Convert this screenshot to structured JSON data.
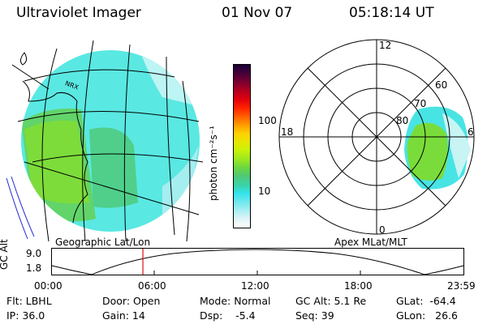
{
  "header": {
    "title": "Ultraviolet Imager",
    "date": "01 Nov 07",
    "time": "05:18:14 UT"
  },
  "geo_panel": {
    "caption": "Geographic Lat/Lon",
    "city_label": "NRX"
  },
  "colorbar": {
    "unit_label": "photon cm⁻²s⁻¹",
    "ticks": [
      {
        "label": "100",
        "level": 0.62
      },
      {
        "label": "10",
        "level": 0.22
      }
    ],
    "colors": [
      "#ffffff",
      "#e0f4f6",
      "#a9eef2",
      "#6ee8ee",
      "#34e3ea",
      "#3cd2a8",
      "#4fc877",
      "#6cd640",
      "#9ce820",
      "#c7f20a",
      "#e8e600",
      "#ffd000",
      "#ff9a00",
      "#ff5c00",
      "#ff2000",
      "#e00010",
      "#b00020",
      "#7a0030",
      "#45003a",
      "#1a0038"
    ]
  },
  "polar_panel": {
    "caption": "Apex MLat/MLT",
    "mlt_labels": {
      "top": "12",
      "bottom": "0",
      "left": "18",
      "right": "6"
    },
    "lat_labels": [
      "60",
      "70",
      "80"
    ]
  },
  "timeline": {
    "ylabel": "GC Alt",
    "y_ticks": [
      "9.0",
      "1.8"
    ],
    "x_ticks": [
      "00:00",
      "06:00",
      "12:00",
      "18:00",
      "23:59"
    ],
    "current_time_fraction": 0.221
  },
  "info": {
    "flt": "Flt: LBHL",
    "ip": "IP: 36.0",
    "door": "Door: Open",
    "gain": "Gain: 14",
    "mode": "Mode: Normal",
    "dsp": "Dsp:    -5.4",
    "gcalt": "GC Alt: 5.1 Re",
    "seq": "Seq: 39",
    "glat": "GLat:  -64.4",
    "glon": "GLon:   26.6"
  }
}
